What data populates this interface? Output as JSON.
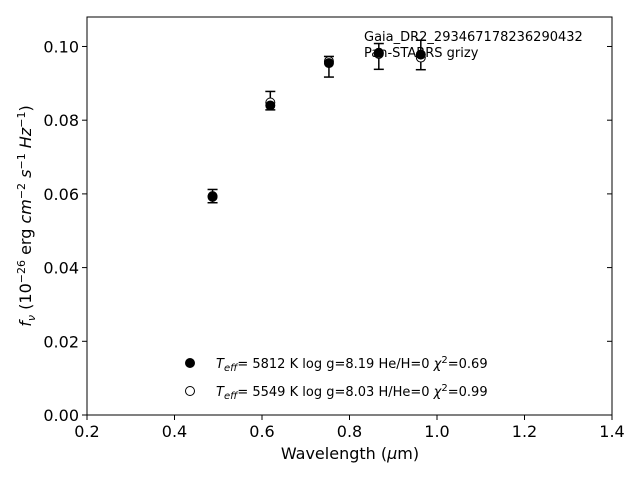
{
  "chart_data": {
    "type": "scatter",
    "title": "",
    "xlabel": "Wavelength (μm)",
    "ylabel": "f_ν (10^-26 erg cm^-2 s^-1 Hz^-1)",
    "xlim": [
      0.2,
      1.4
    ],
    "ylim": [
      0.0,
      0.108
    ],
    "x_ticks": [
      0.2,
      0.4,
      0.6,
      0.8,
      1.0,
      1.2,
      1.4
    ],
    "x_tick_labels": [
      "0.2",
      "0.4",
      "0.6",
      "0.8",
      "1.0",
      "1.2",
      "1.4"
    ],
    "y_ticks": [
      0.0,
      0.02,
      0.04,
      0.06,
      0.08,
      0.1
    ],
    "y_tick_labels": [
      "0.00",
      "0.02",
      "0.04",
      "0.06",
      "0.08",
      "0.10"
    ],
    "grid": false,
    "annotations": [
      "Gaia_DR2_293467178236290432",
      "Pan-STARRS grizy"
    ],
    "observed": {
      "x": [
        0.487,
        0.619,
        0.753,
        0.867,
        0.963
      ],
      "y": [
        0.0594,
        0.0853,
        0.0945,
        0.0973,
        0.0977
      ],
      "yerr": [
        0.0018,
        0.0025,
        0.0028,
        0.0035,
        0.004
      ]
    },
    "series": [
      {
        "name": "T_eff = 5812 K  log g=8.19  He/H=0  χ²=0.69",
        "marker": "filled-circle",
        "x": [
          0.487,
          0.619,
          0.753,
          0.867,
          0.963
        ],
        "y": [
          0.0592,
          0.084,
          0.0955,
          0.0983,
          0.0978
        ]
      },
      {
        "name": "T_eff = 5549 K  log g=8.03  H/He=0  χ²=0.99",
        "marker": "open-circle",
        "x": [
          0.487,
          0.619,
          0.753,
          0.867,
          0.963
        ],
        "y": [
          0.0594,
          0.0848,
          0.096,
          0.098,
          0.097
        ]
      }
    ],
    "legend": {
      "placement": "bottom-center",
      "entries": [
        {
          "teff": "5812 K",
          "logg": "log g=8.19",
          "comp": "He/H=0",
          "chi": "=0.69"
        },
        {
          "teff": "5549 K",
          "logg": "log g=8.03",
          "comp": "H/He=0",
          "chi": "=0.99"
        }
      ]
    }
  }
}
